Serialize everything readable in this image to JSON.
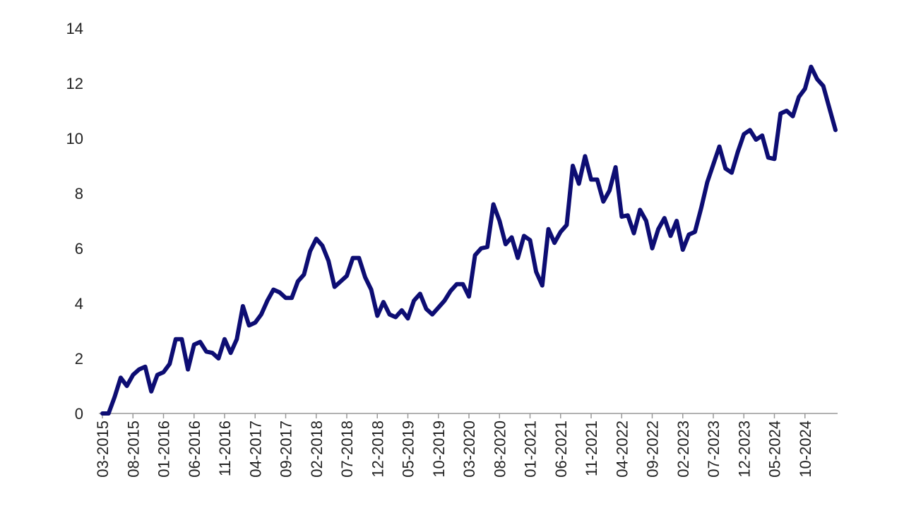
{
  "chart_data": {
    "type": "line",
    "categories": [
      "03-2015",
      null,
      null,
      null,
      null,
      "08-2015",
      null,
      null,
      null,
      null,
      "01-2016",
      null,
      null,
      null,
      null,
      "06-2016",
      null,
      null,
      null,
      null,
      "11-2016",
      null,
      null,
      null,
      null,
      "04-2017",
      null,
      null,
      null,
      null,
      "09-2017",
      null,
      null,
      null,
      null,
      "02-2018",
      null,
      null,
      null,
      null,
      "07-2018",
      null,
      null,
      null,
      null,
      "12-2018",
      null,
      null,
      null,
      null,
      "05-2019",
      null,
      null,
      null,
      null,
      "10-2019",
      null,
      null,
      null,
      null,
      "03-2020",
      null,
      null,
      null,
      null,
      "08-2020",
      null,
      null,
      null,
      null,
      "01-2021",
      null,
      null,
      null,
      null,
      "06-2021",
      null,
      null,
      null,
      null,
      "11-2021",
      null,
      null,
      null,
      null,
      "04-2022",
      null,
      null,
      null,
      null,
      "09-2022",
      null,
      null,
      null,
      null,
      "02-2023",
      null,
      null,
      null,
      null,
      "07-2023",
      null,
      null,
      null,
      null,
      "12-2023",
      null,
      null,
      null,
      null,
      "05-2024",
      null,
      null,
      null,
      null,
      "10-2024",
      null,
      null,
      null,
      null,
      null
    ],
    "series": [
      {
        "color": "#0d0d73",
        "values": [
          0,
          0,
          0.6,
          1.3,
          1.0,
          1.4,
          1.6,
          1.7,
          0.8,
          1.4,
          1.5,
          1.8,
          2.7,
          2.7,
          1.6,
          2.5,
          2.6,
          2.25,
          2.2,
          2.0,
          2.7,
          2.2,
          2.7,
          3.9,
          3.2,
          3.3,
          3.6,
          4.1,
          4.5,
          4.4,
          4.2,
          4.2,
          4.8,
          5.05,
          5.9,
          6.35,
          6.1,
          5.55,
          4.6,
          4.8,
          5.0,
          5.65,
          5.65,
          4.95,
          4.5,
          3.55,
          4.05,
          3.6,
          3.5,
          3.75,
          3.45,
          4.1,
          4.35,
          3.8,
          3.6,
          3.85,
          4.1,
          4.45,
          4.7,
          4.7,
          4.25,
          5.75,
          6.0,
          6.05,
          7.6,
          7.0,
          6.15,
          6.4,
          5.65,
          6.45,
          6.3,
          5.15,
          4.65,
          6.7,
          6.2,
          6.6,
          6.85,
          9.0,
          8.35,
          9.35,
          8.5,
          8.5,
          7.7,
          8.1,
          8.95,
          7.15,
          7.2,
          6.55,
          7.4,
          7.0,
          6.0,
          6.7,
          7.1,
          6.45,
          7.0,
          5.95,
          6.5,
          6.6,
          7.45,
          8.4,
          9.05,
          9.7,
          8.9,
          8.75,
          9.5,
          10.15,
          10.3,
          9.95,
          10.1,
          9.3,
          9.25,
          10.9,
          11.0,
          10.8,
          11.5,
          11.8,
          12.6,
          12.15,
          11.9,
          11.1,
          10.3
        ]
      }
    ],
    "ylim": [
      0,
      14
    ],
    "yticks": [
      0,
      2,
      4,
      6,
      8,
      10,
      12,
      14
    ],
    "grid": false
  }
}
